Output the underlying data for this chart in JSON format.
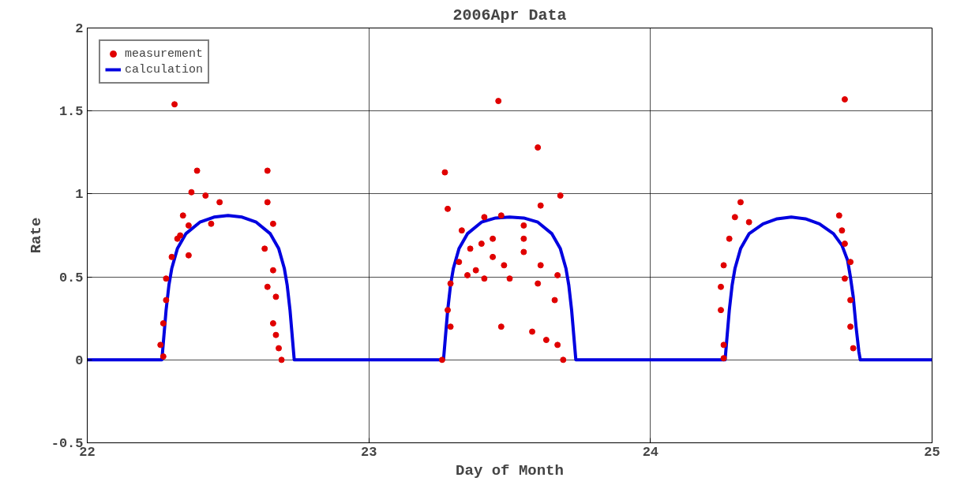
{
  "chart_data": {
    "type": "scatter",
    "title": "2006Apr Data",
    "xlabel": "Day of Month",
    "ylabel": "Rate",
    "xlim": [
      22,
      25
    ],
    "ylim": [
      -0.5,
      2
    ],
    "xticks": [
      22,
      23,
      24,
      25
    ],
    "yticks": [
      -0.5,
      0,
      0.5,
      1,
      1.5,
      2
    ],
    "grid": true,
    "legend": "top left",
    "series": [
      {
        "name": "measurement",
        "marker": "circle",
        "color": "#e00000",
        "x": [
          22.31,
          22.39,
          22.64,
          22.37,
          22.42,
          22.47,
          22.34,
          22.36,
          22.44,
          22.64,
          22.66,
          22.33,
          22.3,
          22.36,
          22.28,
          22.28,
          22.27,
          22.26,
          22.27,
          22.63,
          22.66,
          22.64,
          22.67,
          22.66,
          22.67,
          22.68,
          22.69,
          22.32,
          23.46,
          23.6,
          23.27,
          23.68,
          23.28,
          23.61,
          23.41,
          23.47,
          23.33,
          23.55,
          23.36,
          23.4,
          23.44,
          23.32,
          23.48,
          23.55,
          23.61,
          23.67,
          23.29,
          23.35,
          23.41,
          23.5,
          23.6,
          23.66,
          23.28,
          23.29,
          23.47,
          23.58,
          23.63,
          23.67,
          23.69,
          23.26,
          23.38,
          23.44,
          23.55,
          24.69,
          24.32,
          24.67,
          24.3,
          24.35,
          24.28,
          24.26,
          24.25,
          24.25,
          24.26,
          24.26,
          24.68,
          24.69,
          24.71,
          24.69,
          24.71,
          24.71,
          24.72
        ],
        "values": [
          1.54,
          1.14,
          1.14,
          1.01,
          0.99,
          0.95,
          0.87,
          0.81,
          0.82,
          0.95,
          0.82,
          0.75,
          0.62,
          0.63,
          0.49,
          0.36,
          0.22,
          0.09,
          0.02,
          0.67,
          0.54,
          0.44,
          0.38,
          0.22,
          0.15,
          0.07,
          0.0,
          0.73,
          1.56,
          1.28,
          1.13,
          0.99,
          0.91,
          0.93,
          0.86,
          0.87,
          0.78,
          0.81,
          0.67,
          0.7,
          0.62,
          0.59,
          0.57,
          0.65,
          0.57,
          0.51,
          0.46,
          0.51,
          0.49,
          0.49,
          0.46,
          0.36,
          0.3,
          0.2,
          0.2,
          0.17,
          0.12,
          0.09,
          0.0,
          0.0,
          0.54,
          0.73,
          0.73,
          1.57,
          0.95,
          0.87,
          0.86,
          0.83,
          0.73,
          0.57,
          0.44,
          0.3,
          0.09,
          0.01,
          0.78,
          0.7,
          0.59,
          0.49,
          0.36,
          0.2,
          0.07
        ]
      },
      {
        "name": "calculation",
        "type": "line",
        "color": "#0000e0",
        "x": [
          22.0,
          22.265,
          22.27,
          22.28,
          22.29,
          22.3,
          22.32,
          22.35,
          22.4,
          22.45,
          22.5,
          22.55,
          22.6,
          22.65,
          22.68,
          22.7,
          22.71,
          22.72,
          22.73,
          22.735,
          23.265,
          23.27,
          23.28,
          23.29,
          23.3,
          23.32,
          23.35,
          23.4,
          23.45,
          23.5,
          23.55,
          23.6,
          23.65,
          23.68,
          23.7,
          23.71,
          23.72,
          23.73,
          23.735,
          24.265,
          24.27,
          24.28,
          24.29,
          24.3,
          24.32,
          24.35,
          24.4,
          24.45,
          24.5,
          24.55,
          24.6,
          24.65,
          24.68,
          24.7,
          24.71,
          24.72,
          24.73,
          24.74,
          24.745,
          25.0
        ],
        "values": [
          0,
          0,
          0.1,
          0.3,
          0.45,
          0.55,
          0.67,
          0.76,
          0.83,
          0.86,
          0.87,
          0.86,
          0.83,
          0.76,
          0.67,
          0.55,
          0.45,
          0.3,
          0.1,
          0,
          0,
          0.1,
          0.3,
          0.45,
          0.55,
          0.67,
          0.76,
          0.83,
          0.855,
          0.86,
          0.855,
          0.83,
          0.76,
          0.67,
          0.55,
          0.45,
          0.3,
          0.1,
          0,
          0,
          0.1,
          0.3,
          0.45,
          0.55,
          0.67,
          0.76,
          0.82,
          0.85,
          0.86,
          0.85,
          0.82,
          0.76,
          0.69,
          0.6,
          0.5,
          0.38,
          0.2,
          0.05,
          0,
          0
        ]
      }
    ]
  }
}
